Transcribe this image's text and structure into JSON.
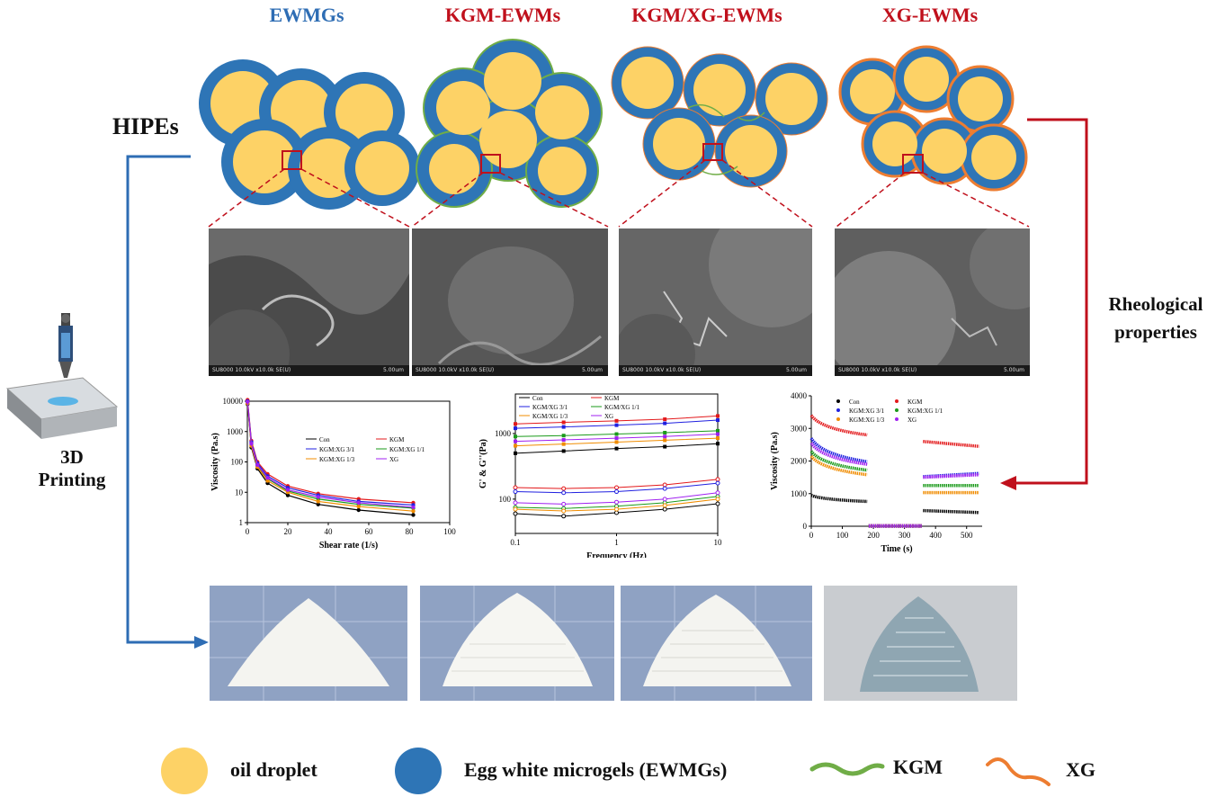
{
  "columns": [
    {
      "title": "EWMGs",
      "color": "#2e6db4"
    },
    {
      "title": "KGM-EWMs",
      "color": "#c0101c"
    },
    {
      "title": "KGM/XG-EWMs",
      "color": "#c0101c"
    },
    {
      "title": "XG-EWMs",
      "color": "#c0101c"
    }
  ],
  "hipes_label": "HIPEs",
  "printing_label_1": "3D",
  "printing_label_2": "Printing",
  "rheology_label_1": "Rheological",
  "rheology_label_2": "properties",
  "sem_scale_text": "SU8000 10.0kV x10.0k SE(U)",
  "sem_scale_value": "5.00um",
  "legend": {
    "oil": "oil droplet",
    "ewmg": "Egg white microgels (EWMGs)",
    "kgm": "KGM",
    "xg": "XG"
  },
  "colors": {
    "oil": "#fdd266",
    "ewmg": "#2e75b6",
    "kgm": "#70ad47",
    "xg": "#ed7d31",
    "accent_blue": "#2e6db4",
    "accent_red": "#c0101c"
  },
  "chart_data": [
    {
      "type": "line",
      "xlabel": "Shear rate (1/s)",
      "ylabel": "Viscosity (Pa.s)",
      "ylim": [
        1,
        10000
      ],
      "xlim": [
        0,
        100
      ],
      "y_scale": "log",
      "xticks": [
        "0",
        "20",
        "40",
        "60",
        "80",
        "100"
      ],
      "yticks": [
        "1",
        "10",
        "100",
        "1000",
        "10000"
      ],
      "legend_position": "top-right",
      "series": [
        {
          "name": "Con",
          "color": "#000000",
          "x": [
            0.1,
            2,
            5,
            10,
            20,
            35,
            55,
            82
          ],
          "values": [
            8000,
            300,
            60,
            20,
            8,
            4,
            2.6,
            1.8
          ]
        },
        {
          "name": "KGM",
          "color": "#e3191b",
          "x": [
            0.1,
            2,
            5,
            10,
            20,
            35,
            55,
            82
          ],
          "values": [
            11000,
            500,
            100,
            40,
            16,
            9,
            6,
            4.5
          ]
        },
        {
          "name": "KGM:XG 3/1",
          "color": "#2020e0",
          "x": [
            0.1,
            2,
            5,
            10,
            20,
            35,
            55,
            82
          ],
          "values": [
            10000,
            450,
            90,
            34,
            14,
            8,
            5,
            3.8
          ]
        },
        {
          "name": "KGM:XG 1/1",
          "color": "#1a9a1a",
          "x": [
            0.1,
            2,
            5,
            10,
            20,
            35,
            55,
            82
          ],
          "values": [
            9000,
            380,
            75,
            28,
            11,
            6,
            4,
            3
          ]
        },
        {
          "name": "KGM:XG 1/3",
          "color": "#f08c00",
          "x": [
            0.1,
            2,
            5,
            10,
            20,
            35,
            55,
            82
          ],
          "values": [
            8500,
            340,
            68,
            24,
            10,
            5,
            3.4,
            2.4
          ]
        },
        {
          "name": "XG",
          "color": "#a020f0",
          "x": [
            0.1,
            2,
            5,
            10,
            20,
            35,
            55,
            82
          ],
          "values": [
            9500,
            400,
            80,
            30,
            12,
            7,
            4.5,
            3.2
          ]
        }
      ]
    },
    {
      "type": "line",
      "xlabel": "Frequency (Hz)",
      "ylabel": "G' & G''(Pa)",
      "x_scale": "log",
      "y_scale": "log",
      "xlim": [
        0.1,
        10
      ],
      "ylim": [
        30,
        4000
      ],
      "xticks": [
        "0.1",
        "1",
        "10"
      ],
      "yticks": [
        "100",
        "1000"
      ],
      "legend_position": "top-left",
      "series": [
        {
          "name": "Con",
          "color": "#000000",
          "x": [
            0.1,
            0.3,
            1,
            3,
            10
          ],
          "gp": [
            500,
            540,
            590,
            630,
            700
          ],
          "gpp": [
            60,
            55,
            62,
            70,
            85
          ]
        },
        {
          "name": "KGM",
          "color": "#e3191b",
          "x": [
            0.1,
            0.3,
            1,
            3,
            10
          ],
          "gp": [
            1400,
            1480,
            1560,
            1650,
            1850
          ],
          "gpp": [
            150,
            145,
            150,
            165,
            200
          ]
        },
        {
          "name": "KGM/XG 3/1",
          "color": "#2020e0",
          "x": [
            0.1,
            0.3,
            1,
            3,
            10
          ],
          "gp": [
            1200,
            1260,
            1340,
            1430,
            1600
          ],
          "gpp": [
            130,
            125,
            130,
            145,
            175
          ]
        },
        {
          "name": "KGM/XG 1/1",
          "color": "#1a9a1a",
          "x": [
            0.1,
            0.3,
            1,
            3,
            10
          ],
          "gp": [
            900,
            930,
            980,
            1030,
            1100
          ],
          "gpp": [
            75,
            72,
            78,
            88,
            110
          ]
        },
        {
          "name": "KGM/XG 1/3",
          "color": "#f08c00",
          "x": [
            0.1,
            0.3,
            1,
            3,
            10
          ],
          "gp": [
            650,
            690,
            740,
            790,
            850
          ],
          "gpp": [
            70,
            66,
            70,
            80,
            100
          ]
        },
        {
          "name": "XG",
          "color": "#a020f0",
          "x": [
            0.1,
            0.3,
            1,
            3,
            10
          ],
          "gp": [
            760,
            800,
            850,
            900,
            980
          ],
          "gpp": [
            88,
            84,
            90,
            100,
            125
          ]
        }
      ]
    },
    {
      "type": "scatter",
      "xlabel": "Time (s)",
      "ylabel": "Viscosity (Pa.s)",
      "xlim": [
        0,
        550
      ],
      "ylim": [
        0,
        4000
      ],
      "xticks": [
        "0",
        "100",
        "200",
        "300",
        "400",
        "500"
      ],
      "yticks": [
        "0",
        "1000",
        "2000",
        "3000",
        "4000"
      ],
      "legend_position": "top",
      "series": [
        {
          "name": "Con",
          "color": "#000000",
          "seg1": [
            950,
            760
          ],
          "seg2": [
            10,
            10
          ],
          "seg3": [
            480,
            420
          ]
        },
        {
          "name": "KGM",
          "color": "#e3191b",
          "seg1": [
            3400,
            2800
          ],
          "seg2": [
            10,
            10
          ],
          "seg3": [
            2600,
            2450
          ]
        },
        {
          "name": "KGM:XG 3/1",
          "color": "#2020e0",
          "seg1": [
            2700,
            1980
          ],
          "seg2": [
            10,
            10
          ],
          "seg3": [
            1520,
            1620
          ]
        },
        {
          "name": "KGM:XG 1/1",
          "color": "#1a9a1a",
          "seg1": [
            2300,
            1720
          ],
          "seg2": [
            10,
            10
          ],
          "seg3": [
            1250,
            1250
          ]
        },
        {
          "name": "KGM:XG 1/3",
          "color": "#f08c00",
          "seg1": [
            2150,
            1580
          ],
          "seg2": [
            10,
            10
          ],
          "seg3": [
            1030,
            1030
          ]
        },
        {
          "name": "XG",
          "color": "#a020f0",
          "seg1": [
            2550,
            1900
          ],
          "seg2": [
            10,
            10
          ],
          "seg3": [
            1500,
            1580
          ]
        }
      ]
    }
  ]
}
